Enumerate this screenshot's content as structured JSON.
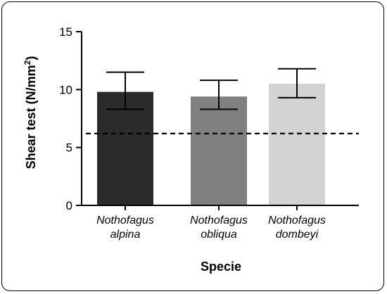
{
  "chart_data": {
    "type": "bar",
    "categories": [
      {
        "line1": "Nothofagus",
        "line2": "alpina"
      },
      {
        "line1": "Nothofagus",
        "line2": "obliqua"
      },
      {
        "line1": "Nothofagus",
        "line2": "dombeyi"
      }
    ],
    "values": [
      9.8,
      9.4,
      10.5
    ],
    "error_low": [
      8.3,
      8.3,
      9.3
    ],
    "error_high": [
      11.5,
      10.8,
      11.8
    ],
    "bar_colors": [
      "#2b2b2b",
      "#808080",
      "#d3d3d3"
    ],
    "reference_line": 6.2,
    "title": "",
    "xlabel": "Specie",
    "ylabel_main": "Shear test (N/mm",
    "ylabel_sup": "2",
    "ylabel_end": ")",
    "ylim": [
      0,
      15
    ],
    "yticks": [
      "0",
      "5",
      "10",
      "15"
    ],
    "ytick_values": [
      0,
      5,
      10,
      15
    ],
    "grid": false
  }
}
